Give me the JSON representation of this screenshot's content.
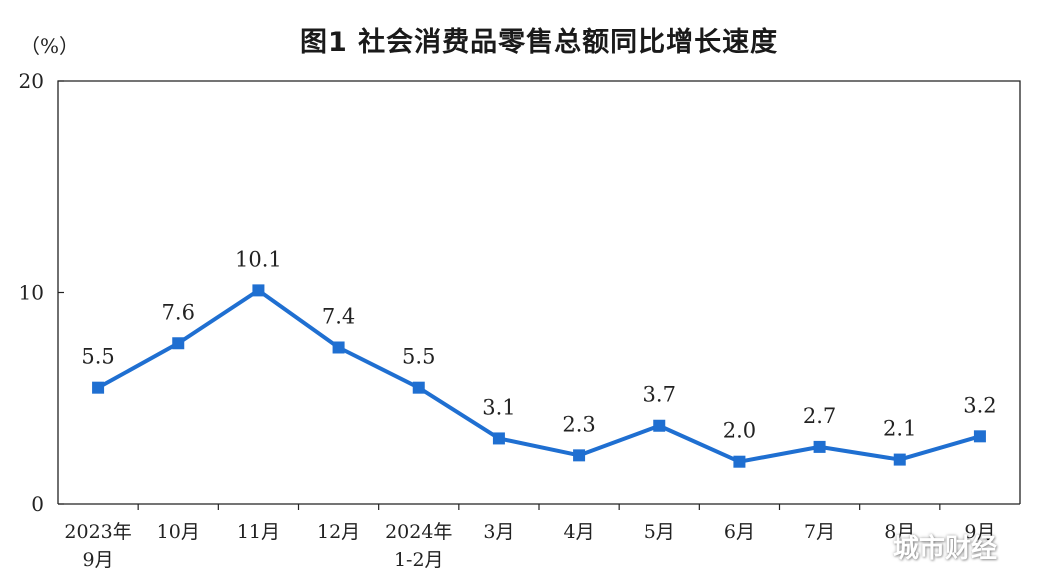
{
  "chart_data": {
    "type": "line",
    "title": "图1  社会消费品零售总额同比增长速度",
    "unit_label": "（%）",
    "categories": [
      [
        "2023年",
        "9月"
      ],
      [
        "10月"
      ],
      [
        "11月"
      ],
      [
        "12月"
      ],
      [
        "2024年",
        "1-2月"
      ],
      [
        "3月"
      ],
      [
        "4月"
      ],
      [
        "5月"
      ],
      [
        "6月"
      ],
      [
        "7月"
      ],
      [
        "8月"
      ],
      [
        "9月"
      ]
    ],
    "series": [
      {
        "values": [
          5.5,
          7.6,
          10.1,
          7.4,
          5.5,
          3.1,
          2.3,
          3.7,
          2.0,
          2.7,
          2.1,
          3.2
        ]
      }
    ],
    "data_labels": [
      "5.5",
      "7.6",
      "10.1",
      "7.4",
      "5.5",
      "3.1",
      "2.3",
      "3.7",
      "2.0",
      "2.7",
      "2.1",
      "3.2"
    ],
    "ylim": [
      0,
      20
    ],
    "yticks": [
      0,
      10,
      20
    ],
    "grid": false,
    "line_color": "#1f6fd1"
  },
  "watermark": "城市财经"
}
